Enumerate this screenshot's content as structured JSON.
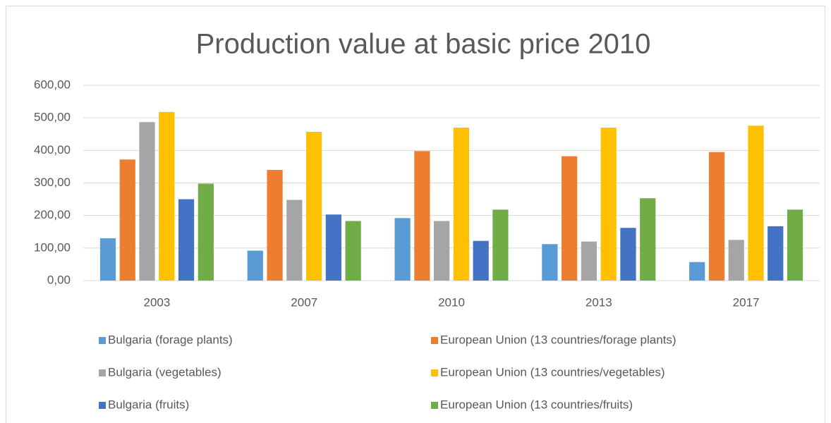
{
  "chart_data": {
    "type": "bar",
    "title": "Production value at basic price 2010",
    "categories": [
      "2003",
      "2007",
      "2010",
      "2013",
      "2017"
    ],
    "series": [
      {
        "name": "Bulgaria (forage plants)",
        "color": "#5b9bd5",
        "values": [
          130,
          92,
          192,
          112,
          57
        ]
      },
      {
        "name": "European Union (13 countries/forage plants)",
        "color": "#ed7d31",
        "values": [
          372,
          340,
          398,
          382,
          395
        ]
      },
      {
        "name": "Bulgaria (vegetables)",
        "color": "#a5a5a5",
        "values": [
          487,
          248,
          183,
          120,
          125
        ]
      },
      {
        "name": "European Union (13 countries/vegetables)",
        "color": "#ffc000",
        "values": [
          518,
          457,
          470,
          470,
          476
        ]
      },
      {
        "name": "Bulgaria (fruits)",
        "color": "#4472c4",
        "values": [
          250,
          203,
          122,
          162,
          167
        ]
      },
      {
        "name": "European Union (13 countries/fruits)",
        "color": "#70ad47",
        "values": [
          298,
          183,
          218,
          253,
          218
        ]
      }
    ],
    "ylim": [
      0,
      600
    ],
    "yticks": [
      {
        "value": 0,
        "label": "0,00"
      },
      {
        "value": 100,
        "label": "100,00"
      },
      {
        "value": 200,
        "label": "200,00"
      },
      {
        "value": 300,
        "label": "300,00"
      },
      {
        "value": 400,
        "label": "400,00"
      },
      {
        "value": 500,
        "label": "500,00"
      },
      {
        "value": 600,
        "label": "600,00"
      }
    ],
    "grid": true,
    "legend": "bottom"
  }
}
